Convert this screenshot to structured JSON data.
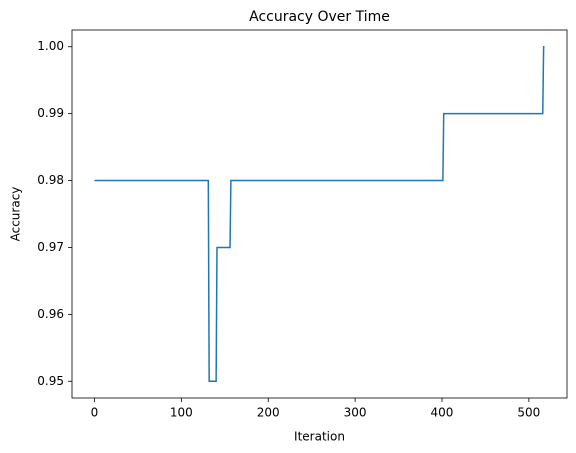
{
  "chart_data": {
    "type": "line",
    "title": "Accuracy Over Time",
    "x_label": "Iteration",
    "y_label": "Accuracy",
    "series": [
      {
        "name": "Accuracy",
        "color": "#1f77b4",
        "x": [
          0,
          131,
          132,
          140,
          141,
          156,
          157,
          401,
          402,
          516,
          517,
          518
        ],
        "values": [
          0.98,
          0.98,
          0.95,
          0.95,
          0.97,
          0.97,
          0.98,
          0.98,
          0.99,
          0.99,
          1.0,
          1.0
        ]
      }
    ],
    "xlim": [
      -25.9,
      543.9
    ],
    "xticks": [
      0,
      100,
      200,
      300,
      400,
      500
    ],
    "ylim": [
      0.9475,
      1.0025
    ],
    "yticks": [
      0.95,
      0.96,
      0.97,
      0.98,
      0.99,
      {
        "value": 1.0,
        "label": "1.00"
      }
    ],
    "grid": false
  }
}
